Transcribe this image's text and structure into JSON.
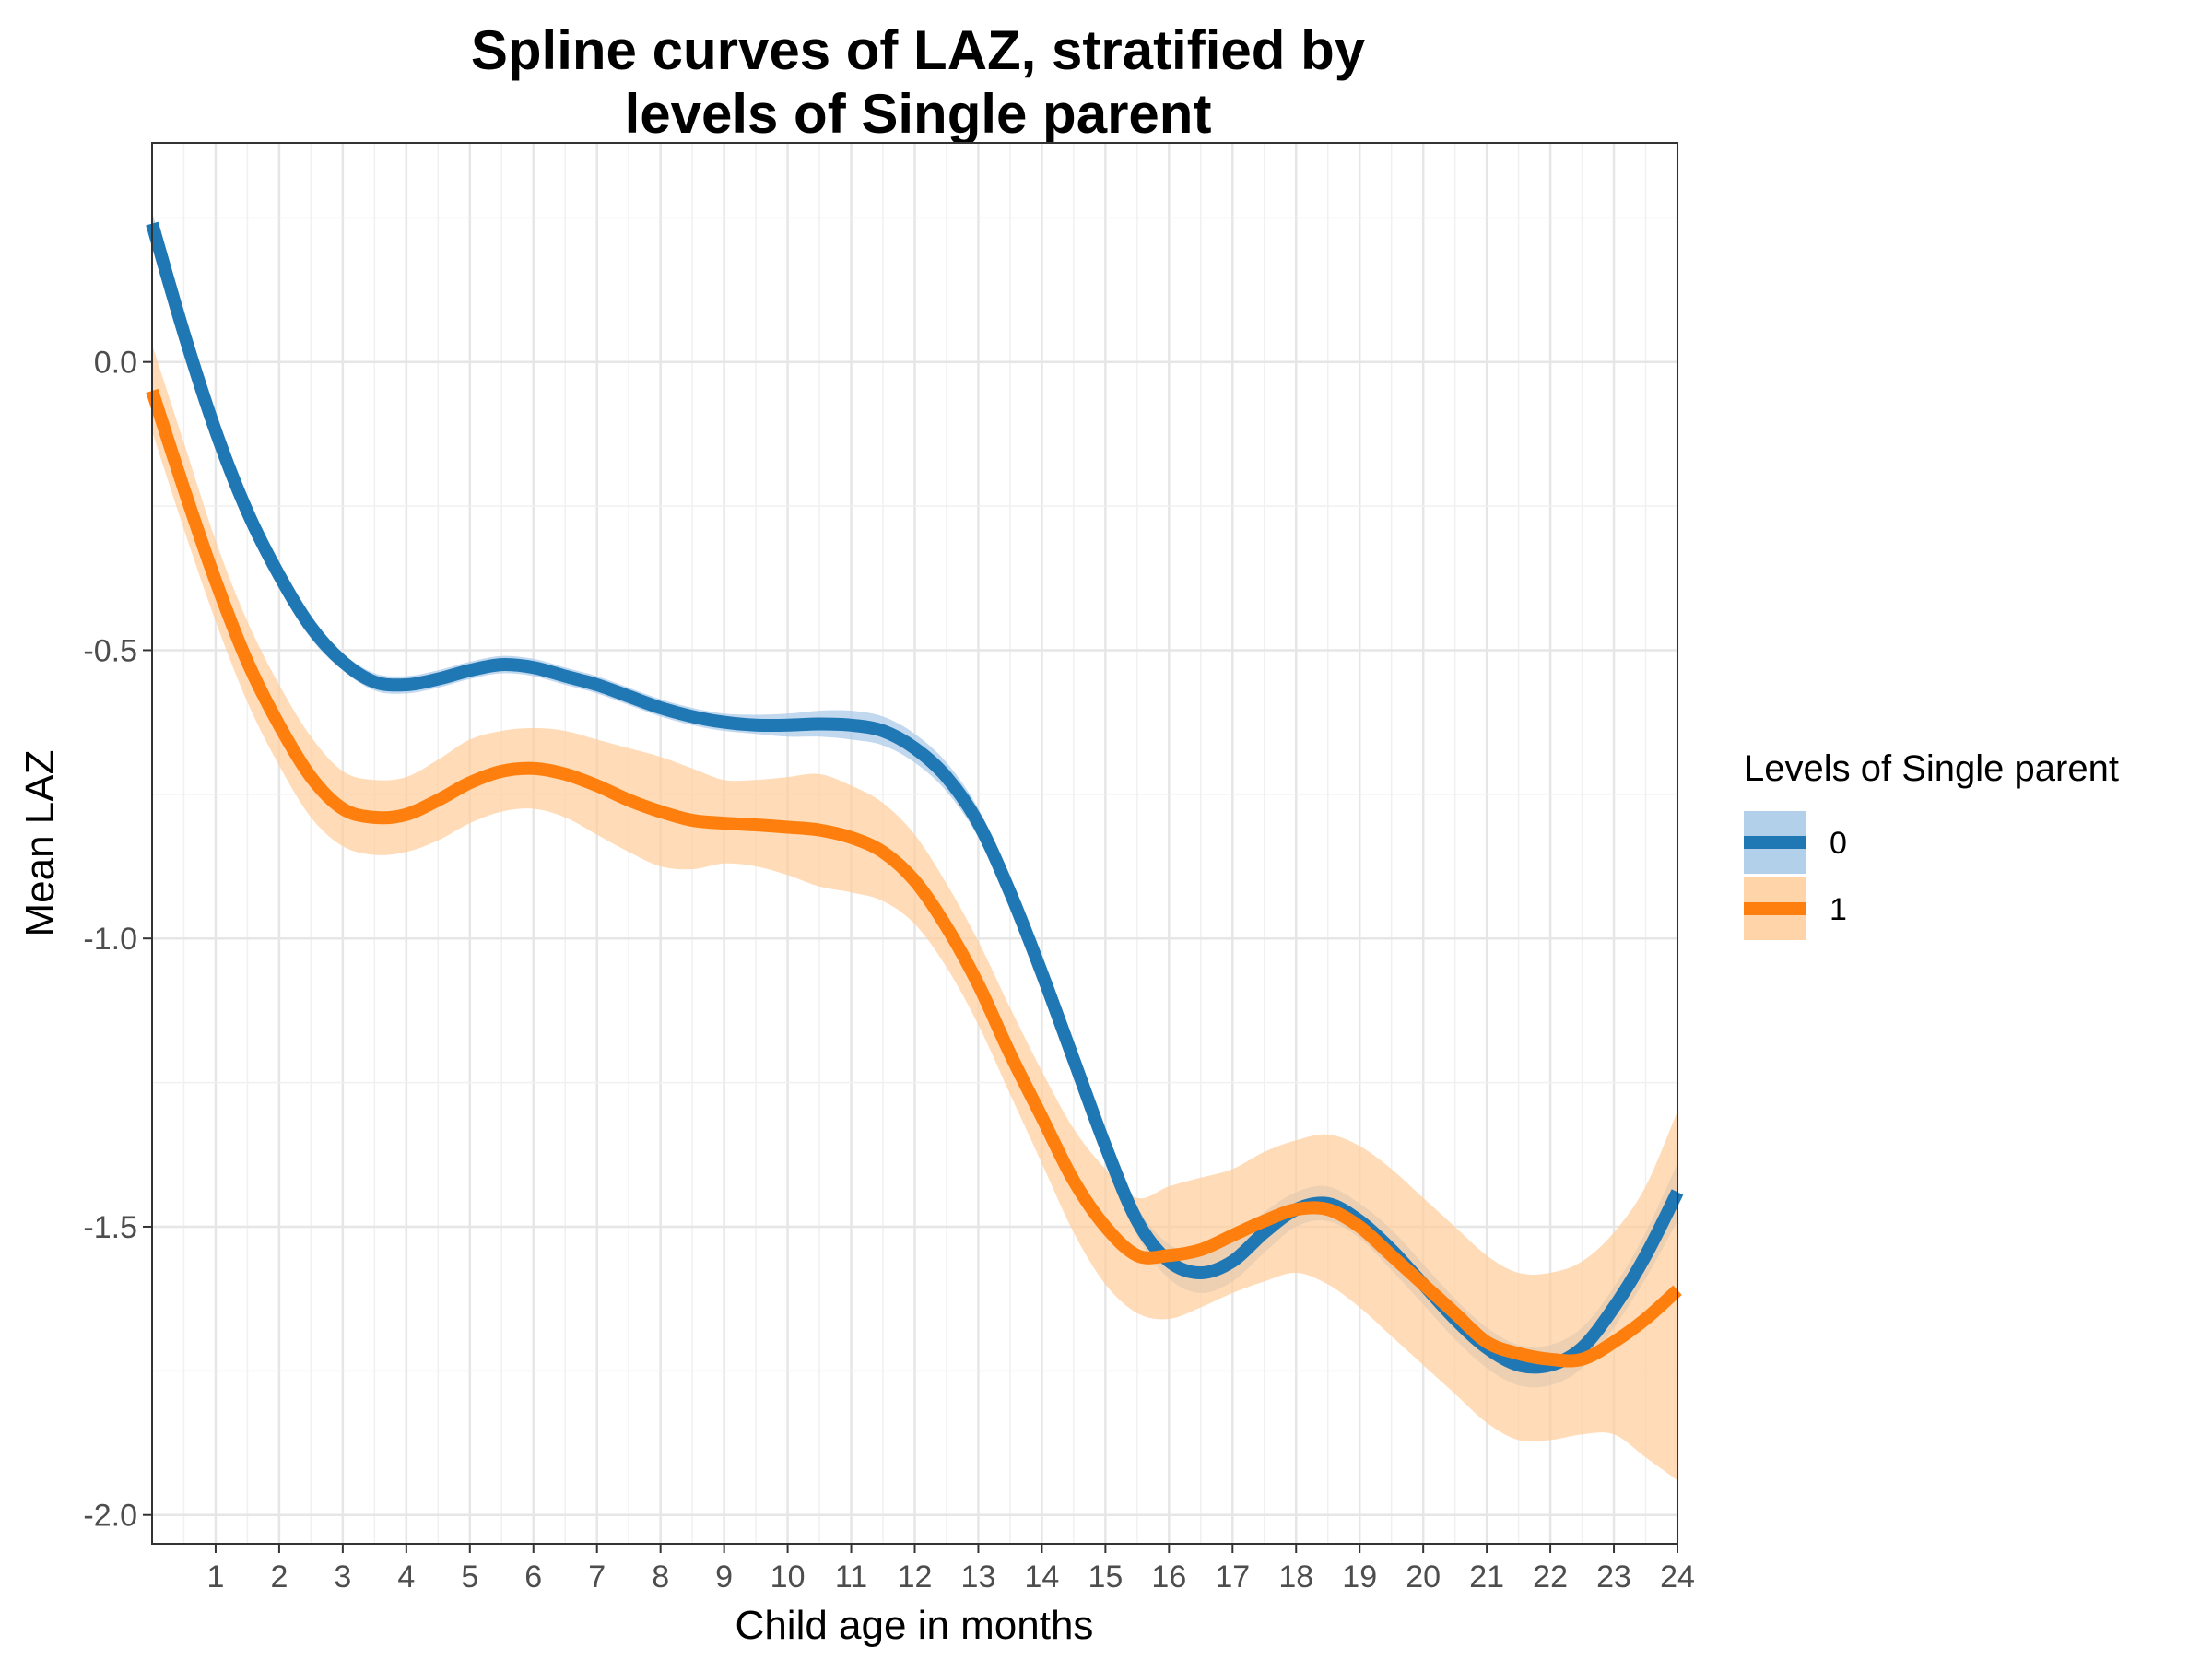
{
  "chart_data": {
    "type": "line",
    "title_lines": [
      "Spline curves of LAZ, stratified by",
      "levels of Single parent"
    ],
    "xlabel": "Child age in months",
    "ylabel": "Mean LAZ",
    "xlim": [
      0,
      24
    ],
    "ylim": [
      -2.05,
      0.38
    ],
    "x_ticks": [
      1,
      2,
      3,
      4,
      5,
      6,
      7,
      8,
      9,
      10,
      11,
      12,
      13,
      14,
      15,
      16,
      17,
      18,
      19,
      20,
      21,
      22,
      23,
      24
    ],
    "y_ticks": [
      0.0,
      -0.5,
      -1.0,
      -1.5,
      -2.0
    ],
    "y_tick_labels": [
      "0.0",
      "-0.5",
      "-1.0",
      "-1.5",
      "-2.0"
    ],
    "grid": true,
    "legend": {
      "title": "Levels of Single parent",
      "placement": "right"
    },
    "series": [
      {
        "name": "0",
        "color": "#1f77b4",
        "band_color": "#a6c8e8",
        "x": [
          0,
          0.5,
          1,
          1.5,
          2,
          2.5,
          3,
          3.5,
          4,
          4.5,
          5,
          5.5,
          6,
          6.5,
          7,
          7.5,
          8,
          8.5,
          9,
          9.5,
          10,
          10.5,
          11,
          11.5,
          12,
          12.5,
          13,
          13.5,
          14,
          14.5,
          15,
          15.5,
          16,
          16.5,
          17,
          17.5,
          18,
          18.5,
          19,
          19.5,
          20,
          20.5,
          21,
          21.5,
          22,
          22.5,
          23,
          23.5,
          24
        ],
        "y": [
          0.24,
          0.05,
          -0.12,
          -0.26,
          -0.37,
          -0.46,
          -0.52,
          -0.555,
          -0.56,
          -0.55,
          -0.535,
          -0.525,
          -0.53,
          -0.545,
          -0.56,
          -0.58,
          -0.6,
          -0.615,
          -0.625,
          -0.63,
          -0.63,
          -0.628,
          -0.63,
          -0.64,
          -0.67,
          -0.72,
          -0.8,
          -0.92,
          -1.06,
          -1.21,
          -1.36,
          -1.49,
          -1.56,
          -1.58,
          -1.56,
          -1.51,
          -1.47,
          -1.46,
          -1.49,
          -1.54,
          -1.6,
          -1.66,
          -1.71,
          -1.74,
          -1.74,
          -1.71,
          -1.64,
          -1.55,
          -1.44
        ],
        "lower": [
          0.22,
          0.03,
          -0.14,
          -0.28,
          -0.39,
          -0.48,
          -0.535,
          -0.57,
          -0.575,
          -0.565,
          -0.55,
          -0.54,
          -0.545,
          -0.56,
          -0.575,
          -0.595,
          -0.615,
          -0.63,
          -0.64,
          -0.645,
          -0.65,
          -0.65,
          -0.655,
          -0.665,
          -0.695,
          -0.745,
          -0.825,
          -0.945,
          -1.085,
          -1.235,
          -1.385,
          -1.515,
          -1.59,
          -1.615,
          -1.595,
          -1.545,
          -1.5,
          -1.49,
          -1.52,
          -1.575,
          -1.635,
          -1.695,
          -1.745,
          -1.775,
          -1.775,
          -1.745,
          -1.675,
          -1.59,
          -1.49
        ],
        "upper": [
          0.26,
          0.07,
          -0.1,
          -0.24,
          -0.35,
          -0.44,
          -0.505,
          -0.54,
          -0.545,
          -0.535,
          -0.52,
          -0.51,
          -0.515,
          -0.53,
          -0.545,
          -0.565,
          -0.585,
          -0.6,
          -0.61,
          -0.612,
          -0.61,
          -0.605,
          -0.605,
          -0.615,
          -0.645,
          -0.695,
          -0.775,
          -0.895,
          -1.035,
          -1.185,
          -1.335,
          -1.465,
          -1.53,
          -1.545,
          -1.525,
          -1.475,
          -1.44,
          -1.43,
          -1.46,
          -1.505,
          -1.565,
          -1.625,
          -1.675,
          -1.705,
          -1.705,
          -1.675,
          -1.605,
          -1.51,
          -1.39
        ]
      },
      {
        "name": "1",
        "color": "#ff7f0e",
        "band_color": "#ffcc99",
        "x": [
          0,
          0.5,
          1,
          1.5,
          2,
          2.5,
          3,
          3.5,
          4,
          4.5,
          5,
          5.5,
          6,
          6.5,
          7,
          7.5,
          8,
          8.5,
          9,
          9.5,
          10,
          10.5,
          11,
          11.5,
          12,
          12.5,
          13,
          13.5,
          14,
          14.5,
          15,
          15.5,
          16,
          16.5,
          17,
          17.5,
          18,
          18.5,
          19,
          19.5,
          20,
          20.5,
          21,
          21.5,
          22,
          22.5,
          23,
          23.5,
          24
        ],
        "y": [
          -0.05,
          -0.22,
          -0.38,
          -0.52,
          -0.63,
          -0.72,
          -0.775,
          -0.79,
          -0.785,
          -0.76,
          -0.73,
          -0.71,
          -0.705,
          -0.715,
          -0.735,
          -0.76,
          -0.78,
          -0.795,
          -0.8,
          -0.803,
          -0.807,
          -0.812,
          -0.825,
          -0.85,
          -0.9,
          -0.98,
          -1.08,
          -1.2,
          -1.31,
          -1.42,
          -1.5,
          -1.55,
          -1.55,
          -1.54,
          -1.515,
          -1.49,
          -1.47,
          -1.47,
          -1.5,
          -1.55,
          -1.6,
          -1.65,
          -1.7,
          -1.72,
          -1.73,
          -1.73,
          -1.7,
          -1.66,
          -1.61
        ],
        "lower": [
          -0.12,
          -0.29,
          -0.45,
          -0.59,
          -0.7,
          -0.79,
          -0.84,
          -0.855,
          -0.85,
          -0.83,
          -0.8,
          -0.78,
          -0.775,
          -0.79,
          -0.82,
          -0.85,
          -0.875,
          -0.88,
          -0.87,
          -0.875,
          -0.89,
          -0.91,
          -0.92,
          -0.935,
          -0.975,
          -1.05,
          -1.15,
          -1.27,
          -1.39,
          -1.51,
          -1.6,
          -1.65,
          -1.66,
          -1.64,
          -1.615,
          -1.595,
          -1.58,
          -1.6,
          -1.64,
          -1.69,
          -1.74,
          -1.79,
          -1.84,
          -1.87,
          -1.87,
          -1.86,
          -1.86,
          -1.9,
          -1.94
        ],
        "upper": [
          0.03,
          -0.14,
          -0.31,
          -0.45,
          -0.56,
          -0.65,
          -0.71,
          -0.725,
          -0.72,
          -0.69,
          -0.655,
          -0.64,
          -0.635,
          -0.64,
          -0.655,
          -0.67,
          -0.685,
          -0.705,
          -0.725,
          -0.725,
          -0.72,
          -0.715,
          -0.735,
          -0.765,
          -0.82,
          -0.905,
          -1.005,
          -1.12,
          -1.23,
          -1.33,
          -1.4,
          -1.45,
          -1.43,
          -1.415,
          -1.4,
          -1.37,
          -1.35,
          -1.34,
          -1.36,
          -1.4,
          -1.45,
          -1.5,
          -1.55,
          -1.58,
          -1.58,
          -1.56,
          -1.51,
          -1.43,
          -1.3
        ]
      }
    ]
  }
}
